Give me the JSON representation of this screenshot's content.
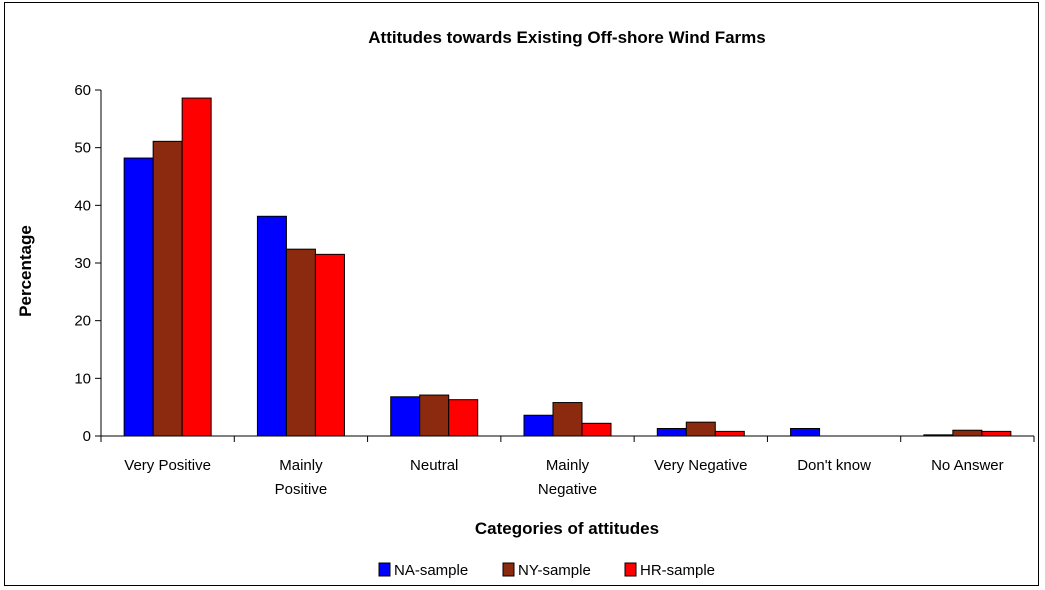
{
  "chart_data": {
    "type": "bar",
    "title": "Attitudes towards Existing Off-shore Wind Farms",
    "xlabel": "Categories of attitudes",
    "ylabel": "Percentage",
    "ylim": [
      0,
      60
    ],
    "yticks": [
      0,
      10,
      20,
      30,
      40,
      50,
      60
    ],
    "grid": false,
    "legend_position": "bottom",
    "categories": [
      [
        "Very Positive"
      ],
      [
        "Mainly",
        "Positive"
      ],
      [
        "Neutral"
      ],
      [
        "Mainly",
        "Negative"
      ],
      [
        "Very Negative"
      ],
      [
        "Don't know"
      ],
      [
        "No Answer"
      ]
    ],
    "series": [
      {
        "name": "NA-sample",
        "color": "#0000ff",
        "values": [
          48.2,
          38.1,
          6.8,
          3.6,
          1.3,
          1.3,
          0.2
        ]
      },
      {
        "name": "NY-sample",
        "color": "#8b2a0e",
        "values": [
          51.1,
          32.4,
          7.1,
          5.8,
          2.4,
          0.0,
          1.0
        ]
      },
      {
        "name": "HR-sample",
        "color": "#ff0000",
        "values": [
          58.6,
          31.5,
          6.3,
          2.2,
          0.8,
          0.0,
          0.8
        ]
      }
    ]
  }
}
